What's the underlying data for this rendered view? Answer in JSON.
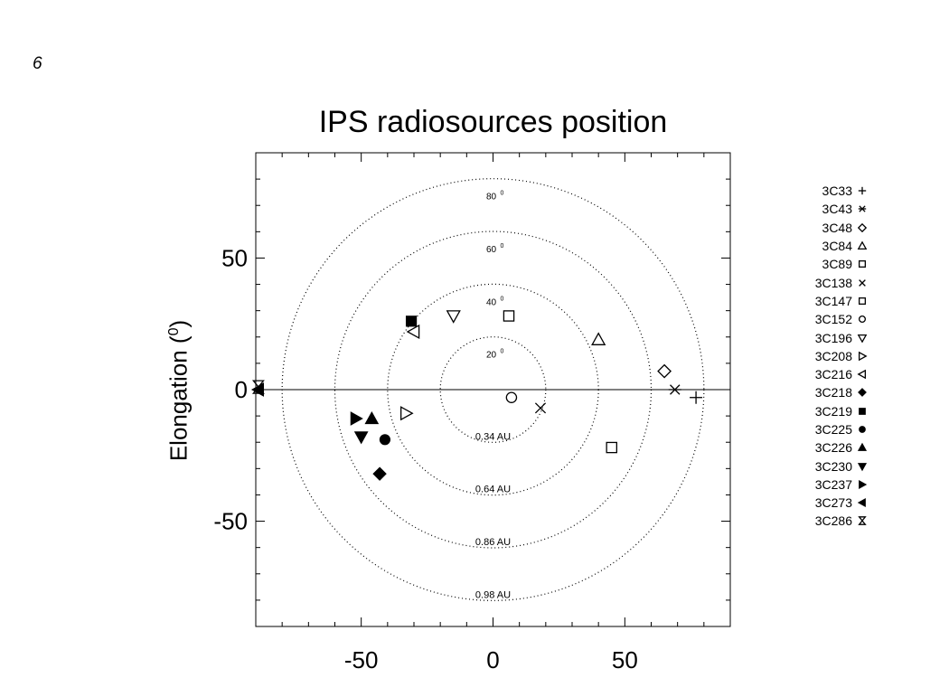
{
  "page_mark": "6",
  "chart_data": {
    "type": "scatter",
    "title": "IPS radiosources position",
    "ylabel_prefix": "Elongation (",
    "ylabel_sup": "0",
    "ylabel_suffix": ")",
    "xlabel": "",
    "xlim": [
      -90,
      90
    ],
    "ylim": [
      -90,
      90
    ],
    "x_ticks": [
      -50,
      0,
      50
    ],
    "y_ticks": [
      -50,
      0,
      50
    ],
    "grid": false,
    "legend_placement": "right",
    "elongation_circles": [
      {
        "radius": 20,
        "angle_label": "20",
        "distance_label": "0.34 AU"
      },
      {
        "radius": 40,
        "angle_label": "40",
        "distance_label": "0.64 AU"
      },
      {
        "radius": 60,
        "angle_label": "60",
        "distance_label": "0.86 AU"
      },
      {
        "radius": 80,
        "angle_label": "80",
        "distance_label": "0.98 AU"
      }
    ],
    "series": [
      {
        "name": "3C33",
        "marker": "plus",
        "x": 77,
        "y": -3
      },
      {
        "name": "3C43",
        "marker": "asterisk",
        "x": 69,
        "y": 0
      },
      {
        "name": "3C48",
        "marker": "diamond-open",
        "x": 65,
        "y": 7
      },
      {
        "name": "3C84",
        "marker": "triangle-up-open",
        "x": 40,
        "y": 19
      },
      {
        "name": "3C89",
        "marker": "square-open",
        "x": 45,
        "y": -22
      },
      {
        "name": "3C138",
        "marker": "x",
        "x": 18,
        "y": -7
      },
      {
        "name": "3C147",
        "marker": "square-open",
        "x": 6,
        "y": 28
      },
      {
        "name": "3C152",
        "marker": "circle-open",
        "x": 7,
        "y": -3
      },
      {
        "name": "3C196",
        "marker": "triangle-down-open",
        "x": -15,
        "y": 28
      },
      {
        "name": "3C208",
        "marker": "triangle-right-open",
        "x": -33,
        "y": -9
      },
      {
        "name": "3C216",
        "marker": "triangle-left-open",
        "x": -30,
        "y": 22
      },
      {
        "name": "3C218",
        "marker": "diamond-filled",
        "x": -43,
        "y": -32
      },
      {
        "name": "3C219",
        "marker": "square-filled",
        "x": -31,
        "y": 26
      },
      {
        "name": "3C225",
        "marker": "circle-filled",
        "x": -41,
        "y": -19
      },
      {
        "name": "3C226",
        "marker": "triangle-up-filled",
        "x": -46,
        "y": -11
      },
      {
        "name": "3C230",
        "marker": "triangle-down-filled",
        "x": -50,
        "y": -18
      },
      {
        "name": "3C237",
        "marker": "triangle-right-filled",
        "x": -52,
        "y": -11
      },
      {
        "name": "3C273",
        "marker": "triangle-left-filled",
        "x": -89,
        "y": 0
      },
      {
        "name": "3C286",
        "marker": "bowtie",
        "x": -89,
        "y": 1
      }
    ]
  }
}
